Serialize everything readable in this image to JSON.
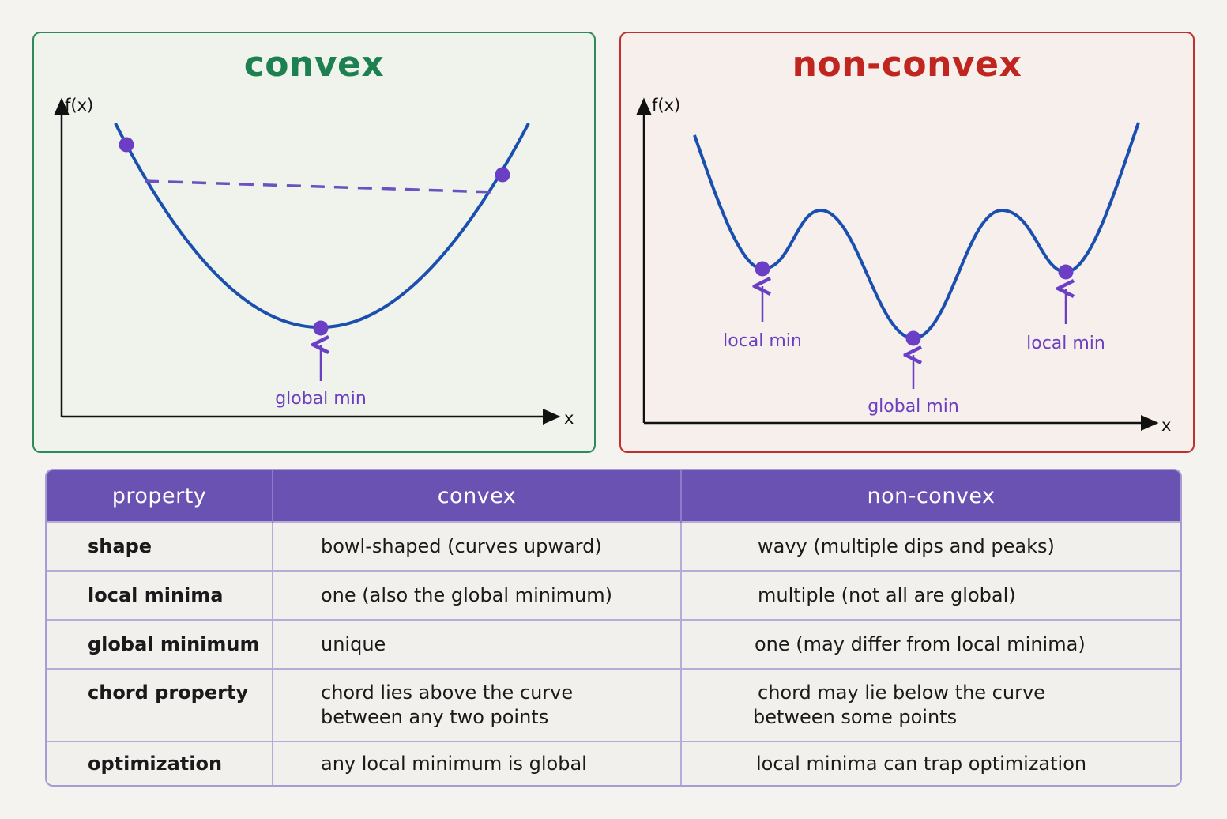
{
  "convex_panel": {
    "title": "convex",
    "y_axis_label": "f(x)",
    "x_axis_label": "x",
    "min_label": "global min",
    "colors": {
      "border": "#2e8a58",
      "title": "#1d8050",
      "curve": "#1a4fb0",
      "points": "#6a3fc6"
    }
  },
  "nonconvex_panel": {
    "title": "non-convex",
    "y_axis_label": "f(x)",
    "x_axis_label": "x",
    "local_min_left_label": "local min",
    "global_min_label": "global min",
    "local_min_right_label": "local min",
    "colors": {
      "border": "#c0302c",
      "title": "#c0261f",
      "curve": "#1a4fb0",
      "points": "#6a3fc6"
    }
  },
  "table": {
    "headers": [
      "property",
      "convex",
      "non-convex"
    ],
    "rows": [
      {
        "property": "shape",
        "convex": [
          "bowl-shaped (curves upward)"
        ],
        "nonconvex": [
          "wavy (multiple dips and peaks)"
        ]
      },
      {
        "property": "local minima",
        "convex": [
          "one (also the global minimum)"
        ],
        "nonconvex": [
          "multiple (not all are global)"
        ]
      },
      {
        "property": "global minimum",
        "convex": [
          "unique"
        ],
        "nonconvex": [
          "one (may differ from local minima)"
        ]
      },
      {
        "property": "chord property",
        "convex": [
          "chord lies above the curve",
          "between any two points"
        ],
        "nonconvex": [
          "chord may lie below the curve",
          "between some points"
        ]
      },
      {
        "property": "optimization",
        "convex": [
          "any local minimum is global"
        ],
        "nonconvex": [
          "local minima can trap optimization"
        ]
      }
    ]
  }
}
